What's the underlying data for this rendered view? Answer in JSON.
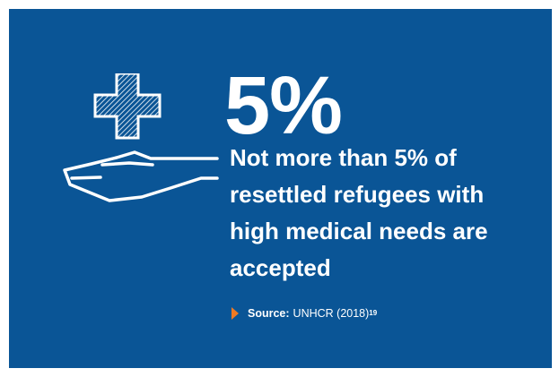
{
  "stat": {
    "value": "5%",
    "headline": "Not more than 5% of resettled refugees with high medical needs are accepted"
  },
  "source": {
    "label": "Source:",
    "text": "UNHCR (2018)",
    "footnote": "19"
  },
  "icons": {
    "main": "hand-with-medical-cross-icon",
    "bullet": "triangle-arrow-icon"
  },
  "colors": {
    "background": "#0a5596",
    "text": "#ffffff",
    "accent": "#f07a22"
  }
}
